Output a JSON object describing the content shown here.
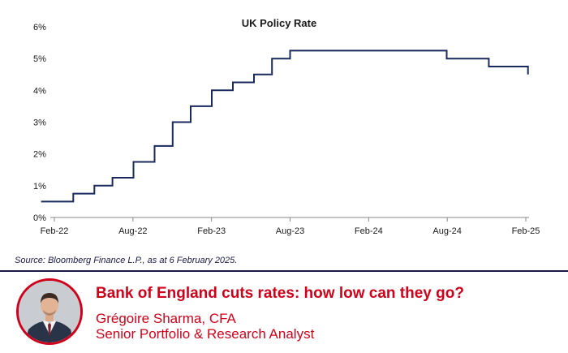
{
  "chart_data": {
    "type": "line",
    "title": "UK Policy Rate",
    "xlabel": "",
    "ylabel": "",
    "ylim": [
      0,
      6
    ],
    "y_ticks": [
      "0%",
      "1%",
      "2%",
      "3%",
      "4%",
      "5%",
      "6%"
    ],
    "x_ticks": [
      "Feb-22",
      "Aug-22",
      "Feb-23",
      "Aug-23",
      "Feb-24",
      "Aug-24",
      "Feb-25"
    ],
    "x_domain": [
      "2022-01-01",
      "2025-02-06"
    ],
    "step": true,
    "series": [
      {
        "name": "UK Policy Rate",
        "color": "#1a2a5e",
        "points": [
          {
            "date": "2022-01-01",
            "value": 0.5
          },
          {
            "date": "2022-02-03",
            "value": 0.5
          },
          {
            "date": "2022-03-17",
            "value": 0.75
          },
          {
            "date": "2022-05-05",
            "value": 1.0
          },
          {
            "date": "2022-06-16",
            "value": 1.25
          },
          {
            "date": "2022-08-04",
            "value": 1.75
          },
          {
            "date": "2022-09-22",
            "value": 2.25
          },
          {
            "date": "2022-11-03",
            "value": 3.0
          },
          {
            "date": "2022-12-15",
            "value": 3.5
          },
          {
            "date": "2023-02-02",
            "value": 4.0
          },
          {
            "date": "2023-03-23",
            "value": 4.25
          },
          {
            "date": "2023-05-11",
            "value": 4.5
          },
          {
            "date": "2023-06-22",
            "value": 5.0
          },
          {
            "date": "2023-08-03",
            "value": 5.25
          },
          {
            "date": "2024-08-01",
            "value": 5.0
          },
          {
            "date": "2024-11-07",
            "value": 4.75
          },
          {
            "date": "2025-02-06",
            "value": 4.5
          }
        ]
      }
    ]
  },
  "source_text": "Source: Bloomberg Finance L.P., as at 6 February 2025.",
  "footer": {
    "headline": "Bank of England cuts rates: how low can they go?",
    "author_name": "Grégoire Sharma, CFA",
    "author_role": "Senior Portfolio & Research Analyst"
  },
  "colors": {
    "accent": "#d0021b",
    "navy": "#1a1a4a",
    "line": "#1a2a5e"
  }
}
